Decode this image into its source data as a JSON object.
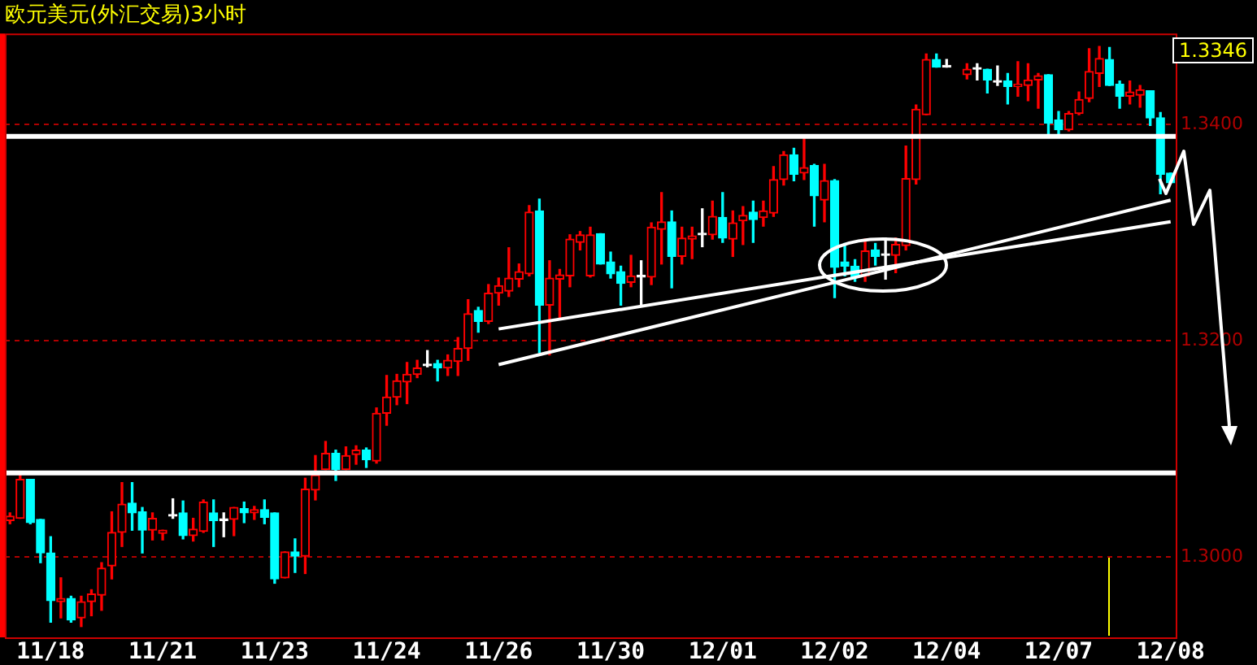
{
  "chart_data": {
    "type": "candlestick",
    "title": "欧元美元(外汇交易)3小时",
    "categories": [
      null,
      null,
      null,
      null,
      "11/18",
      null,
      null,
      null,
      null,
      null,
      null,
      null,
      null,
      null,
      null,
      "11/21",
      null,
      null,
      null,
      null,
      null,
      null,
      null,
      null,
      null,
      null,
      "11/23",
      null,
      null,
      null,
      null,
      null,
      null,
      null,
      null,
      null,
      null,
      "11/24",
      null,
      null,
      null,
      null,
      null,
      null,
      null,
      null,
      null,
      null,
      "11/26",
      null,
      null,
      null,
      null,
      null,
      null,
      null,
      null,
      null,
      null,
      "11/30",
      null,
      null,
      null,
      null,
      null,
      null,
      null,
      null,
      null,
      null,
      "12/01",
      null,
      null,
      null,
      null,
      null,
      null,
      null,
      null,
      null,
      null,
      "12/02",
      null,
      null,
      null,
      null,
      null,
      null,
      null,
      null,
      null,
      null,
      "12/04",
      null,
      null,
      null,
      null,
      null,
      null,
      null,
      null,
      null,
      null,
      "12/07",
      null,
      null,
      null,
      null,
      null,
      null,
      null,
      null,
      null,
      null,
      "12/08"
    ],
    "ohlc": [
      [
        1.3034,
        1.3041,
        1.3031,
        1.3038
      ],
      [
        1.3036,
        1.3076,
        1.3036,
        1.3072
      ],
      [
        1.3072,
        1.3072,
        1.3031,
        1.3032
      ],
      [
        1.3035,
        1.3035,
        1.2995,
        1.3004
      ],
      [
        1.3004,
        1.3019,
        1.294,
        1.296
      ],
      [
        1.2959,
        1.2981,
        1.2944,
        1.2962
      ],
      [
        1.2962,
        1.2964,
        1.294,
        1.2942
      ],
      [
        1.2944,
        1.2964,
        1.2936,
        1.2959
      ],
      [
        1.2959,
        1.297,
        1.2946,
        1.2966
      ],
      [
        1.2965,
        1.2995,
        1.2951,
        1.299
      ],
      [
        1.2992,
        1.3042,
        1.298,
        1.3023
      ],
      [
        1.3023,
        1.3069,
        1.301,
        1.3049
      ],
      [
        1.305,
        1.3069,
        1.3025,
        1.3041
      ],
      [
        1.3042,
        1.3046,
        1.3004,
        1.3025
      ],
      [
        1.3025,
        1.3041,
        1.3016,
        1.3036
      ],
      [
        1.3022,
        1.3025,
        1.3016,
        1.3025
      ],
      [
        1.3038,
        1.3054,
        1.3036,
        1.3038
      ],
      [
        1.3041,
        1.3052,
        1.3017,
        1.302
      ],
      [
        1.302,
        1.3036,
        1.3015,
        1.3026
      ],
      [
        1.3024,
        1.3053,
        1.3023,
        1.3051
      ],
      [
        1.3041,
        1.3053,
        1.301,
        1.3034
      ],
      [
        1.3034,
        1.3041,
        1.3019,
        1.3034
      ],
      [
        1.3035,
        1.3046,
        1.302,
        1.3046
      ],
      [
        1.3045,
        1.3051,
        1.3032,
        1.3041
      ],
      [
        1.3041,
        1.3047,
        1.3035,
        1.3044
      ],
      [
        1.3044,
        1.3053,
        1.3031,
        1.3037
      ],
      [
        1.3041,
        1.3041,
        1.2976,
        1.298
      ],
      [
        1.2981,
        1.3005,
        1.2981,
        1.3005
      ],
      [
        1.3005,
        1.3017,
        1.2986,
        1.3001
      ],
      [
        1.3001,
        1.3073,
        1.2985,
        1.3063
      ],
      [
        1.3062,
        1.3094,
        1.3053,
        1.3076
      ],
      [
        1.3081,
        1.3107,
        1.3081,
        1.3096
      ],
      [
        1.3096,
        1.3099,
        1.3071,
        1.3081
      ],
      [
        1.3081,
        1.3102,
        1.3081,
        1.3094
      ],
      [
        1.3095,
        1.3103,
        1.3086,
        1.3099
      ],
      [
        1.3099,
        1.3101,
        1.3083,
        1.309
      ],
      [
        1.3089,
        1.3138,
        1.3087,
        1.3133
      ],
      [
        1.3133,
        1.3168,
        1.3122,
        1.3148
      ],
      [
        1.3148,
        1.3169,
        1.3141,
        1.3163
      ],
      [
        1.3162,
        1.318,
        1.3142,
        1.3169
      ],
      [
        1.3169,
        1.3182,
        1.3166,
        1.3175
      ],
      [
        1.3177,
        1.3191,
        1.3176,
        1.3177
      ],
      [
        1.3179,
        1.3182,
        1.3163,
        1.3175
      ],
      [
        1.3175,
        1.3187,
        1.3168,
        1.3182
      ],
      [
        1.3181,
        1.3203,
        1.3168,
        1.3193
      ],
      [
        1.3193,
        1.3238,
        1.3182,
        1.3225
      ],
      [
        1.3228,
        1.3231,
        1.3208,
        1.3218
      ],
      [
        1.3218,
        1.3252,
        1.3216,
        1.3244
      ],
      [
        1.3244,
        1.3258,
        1.3233,
        1.3251
      ],
      [
        1.3246,
        1.3286,
        1.3241,
        1.3258
      ],
      [
        1.3257,
        1.3271,
        1.325,
        1.3264
      ],
      [
        1.3262,
        1.3325,
        1.326,
        1.3319
      ],
      [
        1.332,
        1.3331,
        1.3189,
        1.3233
      ],
      [
        1.3233,
        1.3274,
        1.3187,
        1.3258
      ],
      [
        1.3257,
        1.3266,
        1.322,
        1.3261
      ],
      [
        1.326,
        1.3298,
        1.325,
        1.3294
      ],
      [
        1.3291,
        1.3301,
        1.3284,
        1.3298
      ],
      [
        1.326,
        1.3305,
        1.3259,
        1.3298
      ],
      [
        1.3299,
        1.3299,
        1.3271,
        1.3271
      ],
      [
        1.3273,
        1.3282,
        1.3258,
        1.3262
      ],
      [
        1.3264,
        1.3269,
        1.3233,
        1.3253
      ],
      [
        1.3254,
        1.3279,
        1.325,
        1.326
      ],
      [
        1.3259,
        1.3274,
        1.3233,
        1.3259
      ],
      [
        1.3259,
        1.3309,
        1.3252,
        1.3305
      ],
      [
        1.3303,
        1.3337,
        1.3271,
        1.331
      ],
      [
        1.331,
        1.332,
        1.3249,
        1.3278
      ],
      [
        1.3278,
        1.3305,
        1.3271,
        1.3295
      ],
      [
        1.3294,
        1.3305,
        1.3276,
        1.3297
      ],
      [
        1.3298,
        1.3322,
        1.3287,
        1.3298
      ],
      [
        1.3298,
        1.3329,
        1.3294,
        1.3315
      ],
      [
        1.3314,
        1.3337,
        1.3291,
        1.3295
      ],
      [
        1.3294,
        1.332,
        1.3278,
        1.3309
      ],
      [
        1.3311,
        1.3324,
        1.3289,
        1.3316
      ],
      [
        1.3319,
        1.3329,
        1.3291,
        1.3312
      ],
      [
        1.3314,
        1.3329,
        1.3306,
        1.332
      ],
      [
        1.3318,
        1.3361,
        1.3315,
        1.3349
      ],
      [
        1.3349,
        1.3375,
        1.3344,
        1.3372
      ],
      [
        1.3372,
        1.3378,
        1.3348,
        1.3354
      ],
      [
        1.3355,
        1.3388,
        1.3349,
        1.336
      ],
      [
        1.3362,
        1.3363,
        1.3306,
        1.3334
      ],
      [
        1.333,
        1.3363,
        1.331,
        1.3348
      ],
      [
        1.3348,
        1.3349,
        1.324,
        1.3268
      ],
      [
        1.3273,
        1.329,
        1.326,
        1.3269
      ],
      [
        1.3269,
        1.3275,
        1.3255,
        1.3259
      ],
      [
        1.326,
        1.3294,
        1.3255,
        1.3283
      ],
      [
        1.3284,
        1.329,
        1.327,
        1.3278
      ],
      [
        1.3279,
        1.3295,
        1.3257,
        1.3279
      ],
      [
        1.3279,
        1.3295,
        1.3263,
        1.3289
      ],
      [
        1.3288,
        1.338,
        1.3284,
        1.335
      ],
      [
        1.3349,
        1.3418,
        1.3345,
        1.3414
      ],
      [
        1.3409,
        1.3465,
        1.3409,
        1.346
      ],
      [
        1.346,
        1.3465,
        1.3453,
        1.3453
      ],
      [
        1.3453,
        1.346,
        1.3453,
        1.3453
      ],
      null,
      [
        1.3446,
        1.3456,
        1.3442,
        1.3451
      ],
      [
        1.3451,
        1.3456,
        1.3441,
        1.3451
      ],
      [
        1.3451,
        1.3451,
        1.3429,
        1.3441
      ],
      [
        1.3439,
        1.3454,
        1.3436,
        1.3439
      ],
      [
        1.344,
        1.3447,
        1.3419,
        1.3435
      ],
      [
        1.3435,
        1.3458,
        1.3426,
        1.3437
      ],
      [
        1.3436,
        1.3456,
        1.3422,
        1.3441
      ],
      [
        1.3441,
        1.3447,
        1.3415,
        1.3445
      ],
      [
        1.3446,
        1.3446,
        1.3391,
        1.3401
      ],
      [
        1.3404,
        1.3412,
        1.339,
        1.3395
      ],
      [
        1.3395,
        1.3412,
        1.3394,
        1.341
      ],
      [
        1.341,
        1.343,
        1.3409,
        1.3423
      ],
      [
        1.3424,
        1.347,
        1.3421,
        1.3449
      ],
      [
        1.3447,
        1.3472,
        1.3435,
        1.3461
      ],
      [
        1.346,
        1.3471,
        1.3436,
        1.3436
      ],
      [
        1.3437,
        1.344,
        1.3415,
        1.3426
      ],
      [
        1.3426,
        1.344,
        1.3419,
        1.343
      ],
      [
        1.3427,
        1.3436,
        1.3416,
        1.3432
      ],
      [
        1.3431,
        1.3431,
        1.3399,
        1.3406
      ],
      [
        1.3406,
        1.3411,
        1.3336,
        1.3354
      ],
      [
        1.3355,
        1.3355,
        1.3346,
        1.3346
      ]
    ],
    "colors": [
      "#ff0000",
      "#ff0000",
      "#00ffff",
      "#00ffff",
      "#00ffff",
      "#ff0000",
      "#00ffff",
      "#ff0000",
      "#ff0000",
      "#ff0000",
      "#ff0000",
      "#ff0000",
      "#00ffff",
      "#00ffff",
      "#ff0000",
      "#ff0000",
      "#ffffff",
      "#00ffff",
      "#ff0000",
      "#ff0000",
      "#00ffff",
      "#ffffff",
      "#ff0000",
      "#00ffff",
      "#ff0000",
      "#00ffff",
      "#00ffff",
      "#ff0000",
      "#00ffff",
      "#ff0000",
      "#ff0000",
      "#ff0000",
      "#00ffff",
      "#ff0000",
      "#ff0000",
      "#00ffff",
      "#ff0000",
      "#ff0000",
      "#ff0000",
      "#ff0000",
      "#ff0000",
      "#ffffff",
      "#00ffff",
      "#ff0000",
      "#ff0000",
      "#ff0000",
      "#00ffff",
      "#ff0000",
      "#ff0000",
      "#ff0000",
      "#ff0000",
      "#ff0000",
      "#00ffff",
      "#ff0000",
      "#ff0000",
      "#ff0000",
      "#ff0000",
      "#ff0000",
      "#00ffff",
      "#00ffff",
      "#00ffff",
      "#ff0000",
      "#ffffff",
      "#ff0000",
      "#ff0000",
      "#00ffff",
      "#ff0000",
      "#ff0000",
      "#ffffff",
      "#ff0000",
      "#00ffff",
      "#ff0000",
      "#ff0000",
      "#00ffff",
      "#ff0000",
      "#ff0000",
      "#ff0000",
      "#00ffff",
      "#ff0000",
      "#00ffff",
      "#ff0000",
      "#00ffff",
      "#00ffff",
      "#00ffff",
      "#ff0000",
      "#00ffff",
      "#ffffff",
      "#ff0000",
      "#ff0000",
      "#ff0000",
      "#ff0000",
      "#00ffff",
      "#ffffff",
      null,
      "#ff0000",
      "#ffffff",
      "#00ffff",
      "#ffffff",
      "#00ffff",
      "#ff0000",
      "#ff0000",
      "#ff0000",
      "#00ffff",
      "#00ffff",
      "#ff0000",
      "#ff0000",
      "#ff0000",
      "#ff0000",
      "#00ffff",
      "#00ffff",
      "#ff0000",
      "#ff0000",
      "#00ffff",
      "#00ffff",
      "#00ffff"
    ],
    "ylim": [
      1.2926,
      1.3484
    ],
    "yticks": [
      {
        "value": 1.3,
        "label": "1.3000"
      },
      {
        "value": 1.32,
        "label": "1.3200"
      },
      {
        "value": 1.34,
        "label": "1.3400"
      }
    ],
    "series": [
      {
        "type": "line",
        "x": [
          "11/26",
          "12/08"
        ],
        "values": [
          1.3211,
          1.331
        ],
        "color": "#ffffff"
      },
      {
        "type": "line",
        "x": [
          "11/26",
          "12/08"
        ],
        "values": [
          1.3178,
          1.333
        ],
        "color": "#ffffff"
      }
    ],
    "grid": "y",
    "ref_lines": [
      {
        "axis": "y",
        "value": 1.3389,
        "color": "#ffffff"
      },
      {
        "axis": "y",
        "value": 1.3078,
        "color": "#ffffff"
      }
    ],
    "annotations": [
      "1.3346"
    ]
  }
}
